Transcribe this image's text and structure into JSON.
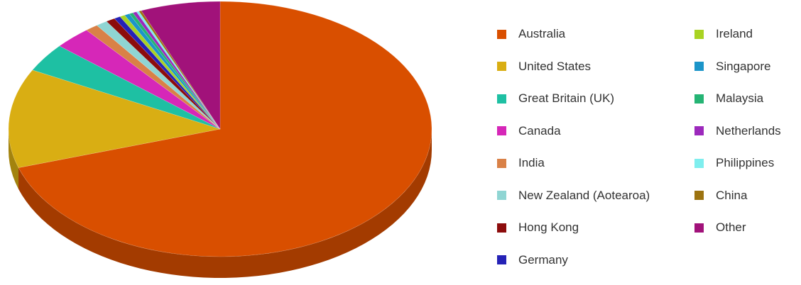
{
  "chart_data": {
    "type": "pie",
    "style": "3d",
    "title": "",
    "legend_position": "right",
    "categories": [
      "Australia",
      "United States",
      "Great Britain (UK)",
      "Canada",
      "India",
      "New Zealand (Aotearoa)",
      "Hong Kong",
      "Germany",
      "Ireland",
      "Singapore",
      "Malaysia",
      "Netherlands",
      "Philippines",
      "China",
      "Other"
    ],
    "values": [
      71.5,
      12.8,
      3.7,
      2.9,
      1.0,
      0.9,
      0.7,
      0.5,
      0.4,
      0.4,
      0.3,
      0.3,
      0.2,
      0.2,
      6.2
    ],
    "colors": [
      "#d94f00",
      "#d9ae13",
      "#1ec0a3",
      "#d627b8",
      "#d98147",
      "#8fd5d3",
      "#8c0c0c",
      "#2522b6",
      "#a9d322",
      "#1c95c9",
      "#25b474",
      "#9c29bc",
      "#7feeee",
      "#9c7310",
      "#a1127a"
    ]
  }
}
